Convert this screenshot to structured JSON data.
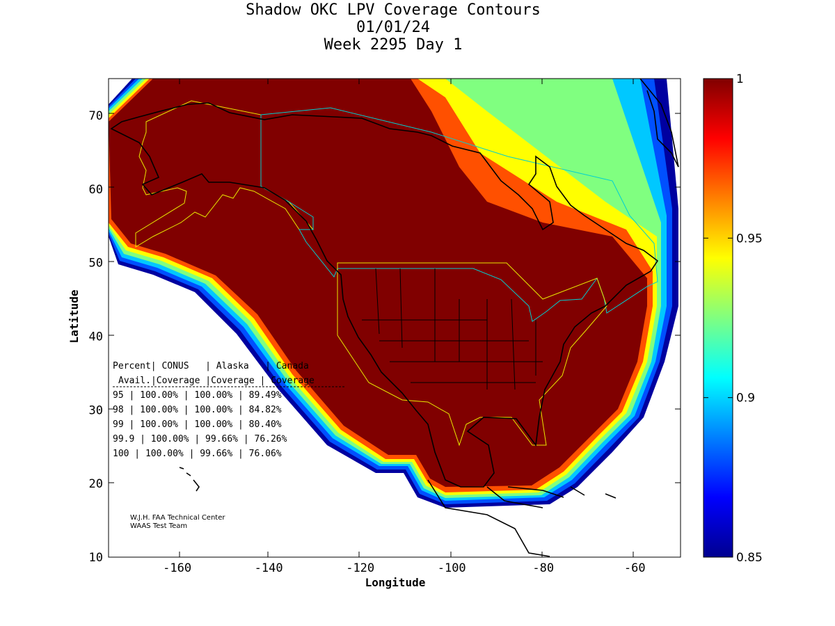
{
  "title": {
    "line1": "Shadow OKC LPV Coverage Contours",
    "line2": "01/01/24",
    "line3": "Week 2295 Day 1"
  },
  "axes": {
    "xlabel": "Longitude",
    "ylabel": "Latitude",
    "xlim": [
      -175,
      -50
    ],
    "ylim": [
      10,
      75
    ],
    "x_ticks": [
      -160,
      -140,
      -120,
      -100,
      -80,
      -60
    ],
    "y_ticks": [
      10,
      20,
      30,
      40,
      50,
      60,
      70
    ]
  },
  "colorbar": {
    "range": [
      0.85,
      1.0
    ],
    "ticks": [
      "1",
      "0.95",
      "0.9",
      "0.85"
    ],
    "tick_values": [
      1.0,
      0.95,
      0.9,
      0.85
    ],
    "colormap": "jet"
  },
  "table": {
    "header1": [
      "Percent",
      "CONUS",
      "Alaska",
      "Canada"
    ],
    "header2": [
      "Avail.",
      "Coverage",
      "Coverage",
      "Coverage"
    ],
    "rows": [
      [
        "95",
        "100.00%",
        "100.00%",
        "89.49%"
      ],
      [
        "98",
        "100.00%",
        "100.00%",
        "84.82%"
      ],
      [
        "99",
        "100.00%",
        "100.00%",
        "80.40%"
      ],
      [
        "99.9",
        "100.00%",
        "99.66%",
        "76.26%"
      ],
      [
        "100",
        "100.00%",
        "99.66%",
        "76.06%"
      ]
    ]
  },
  "credits": {
    "line1": "W.J.H. FAA Technical Center",
    "line2": "WAAS Test Team"
  },
  "chart_data": {
    "type": "heatmap",
    "title": "Shadow OKC LPV Coverage Contours",
    "subtitle": "01/01/24 Week 2295 Day 1",
    "xlabel": "Longitude",
    "ylabel": "Latitude",
    "xlim": [
      -175,
      -50
    ],
    "ylim": [
      10,
      75
    ],
    "color_range": [
      0.85,
      1.0
    ],
    "coverage_table": [
      {
        "percent": "95",
        "conus": "100.00%",
        "alaska": "100.00%",
        "canada": "89.49%"
      },
      {
        "percent": "98",
        "conus": "100.00%",
        "alaska": "100.00%",
        "canada": "84.82%"
      },
      {
        "percent": "99",
        "conus": "100.00%",
        "alaska": "100.00%",
        "canada": "80.40%"
      },
      {
        "percent": "99.9",
        "conus": "100.00%",
        "alaska": "99.66%",
        "canada": "76.26%"
      },
      {
        "percent": "100",
        "conus": "100.00%",
        "alaska": "99.66%",
        "canada": "76.06%"
      }
    ]
  }
}
